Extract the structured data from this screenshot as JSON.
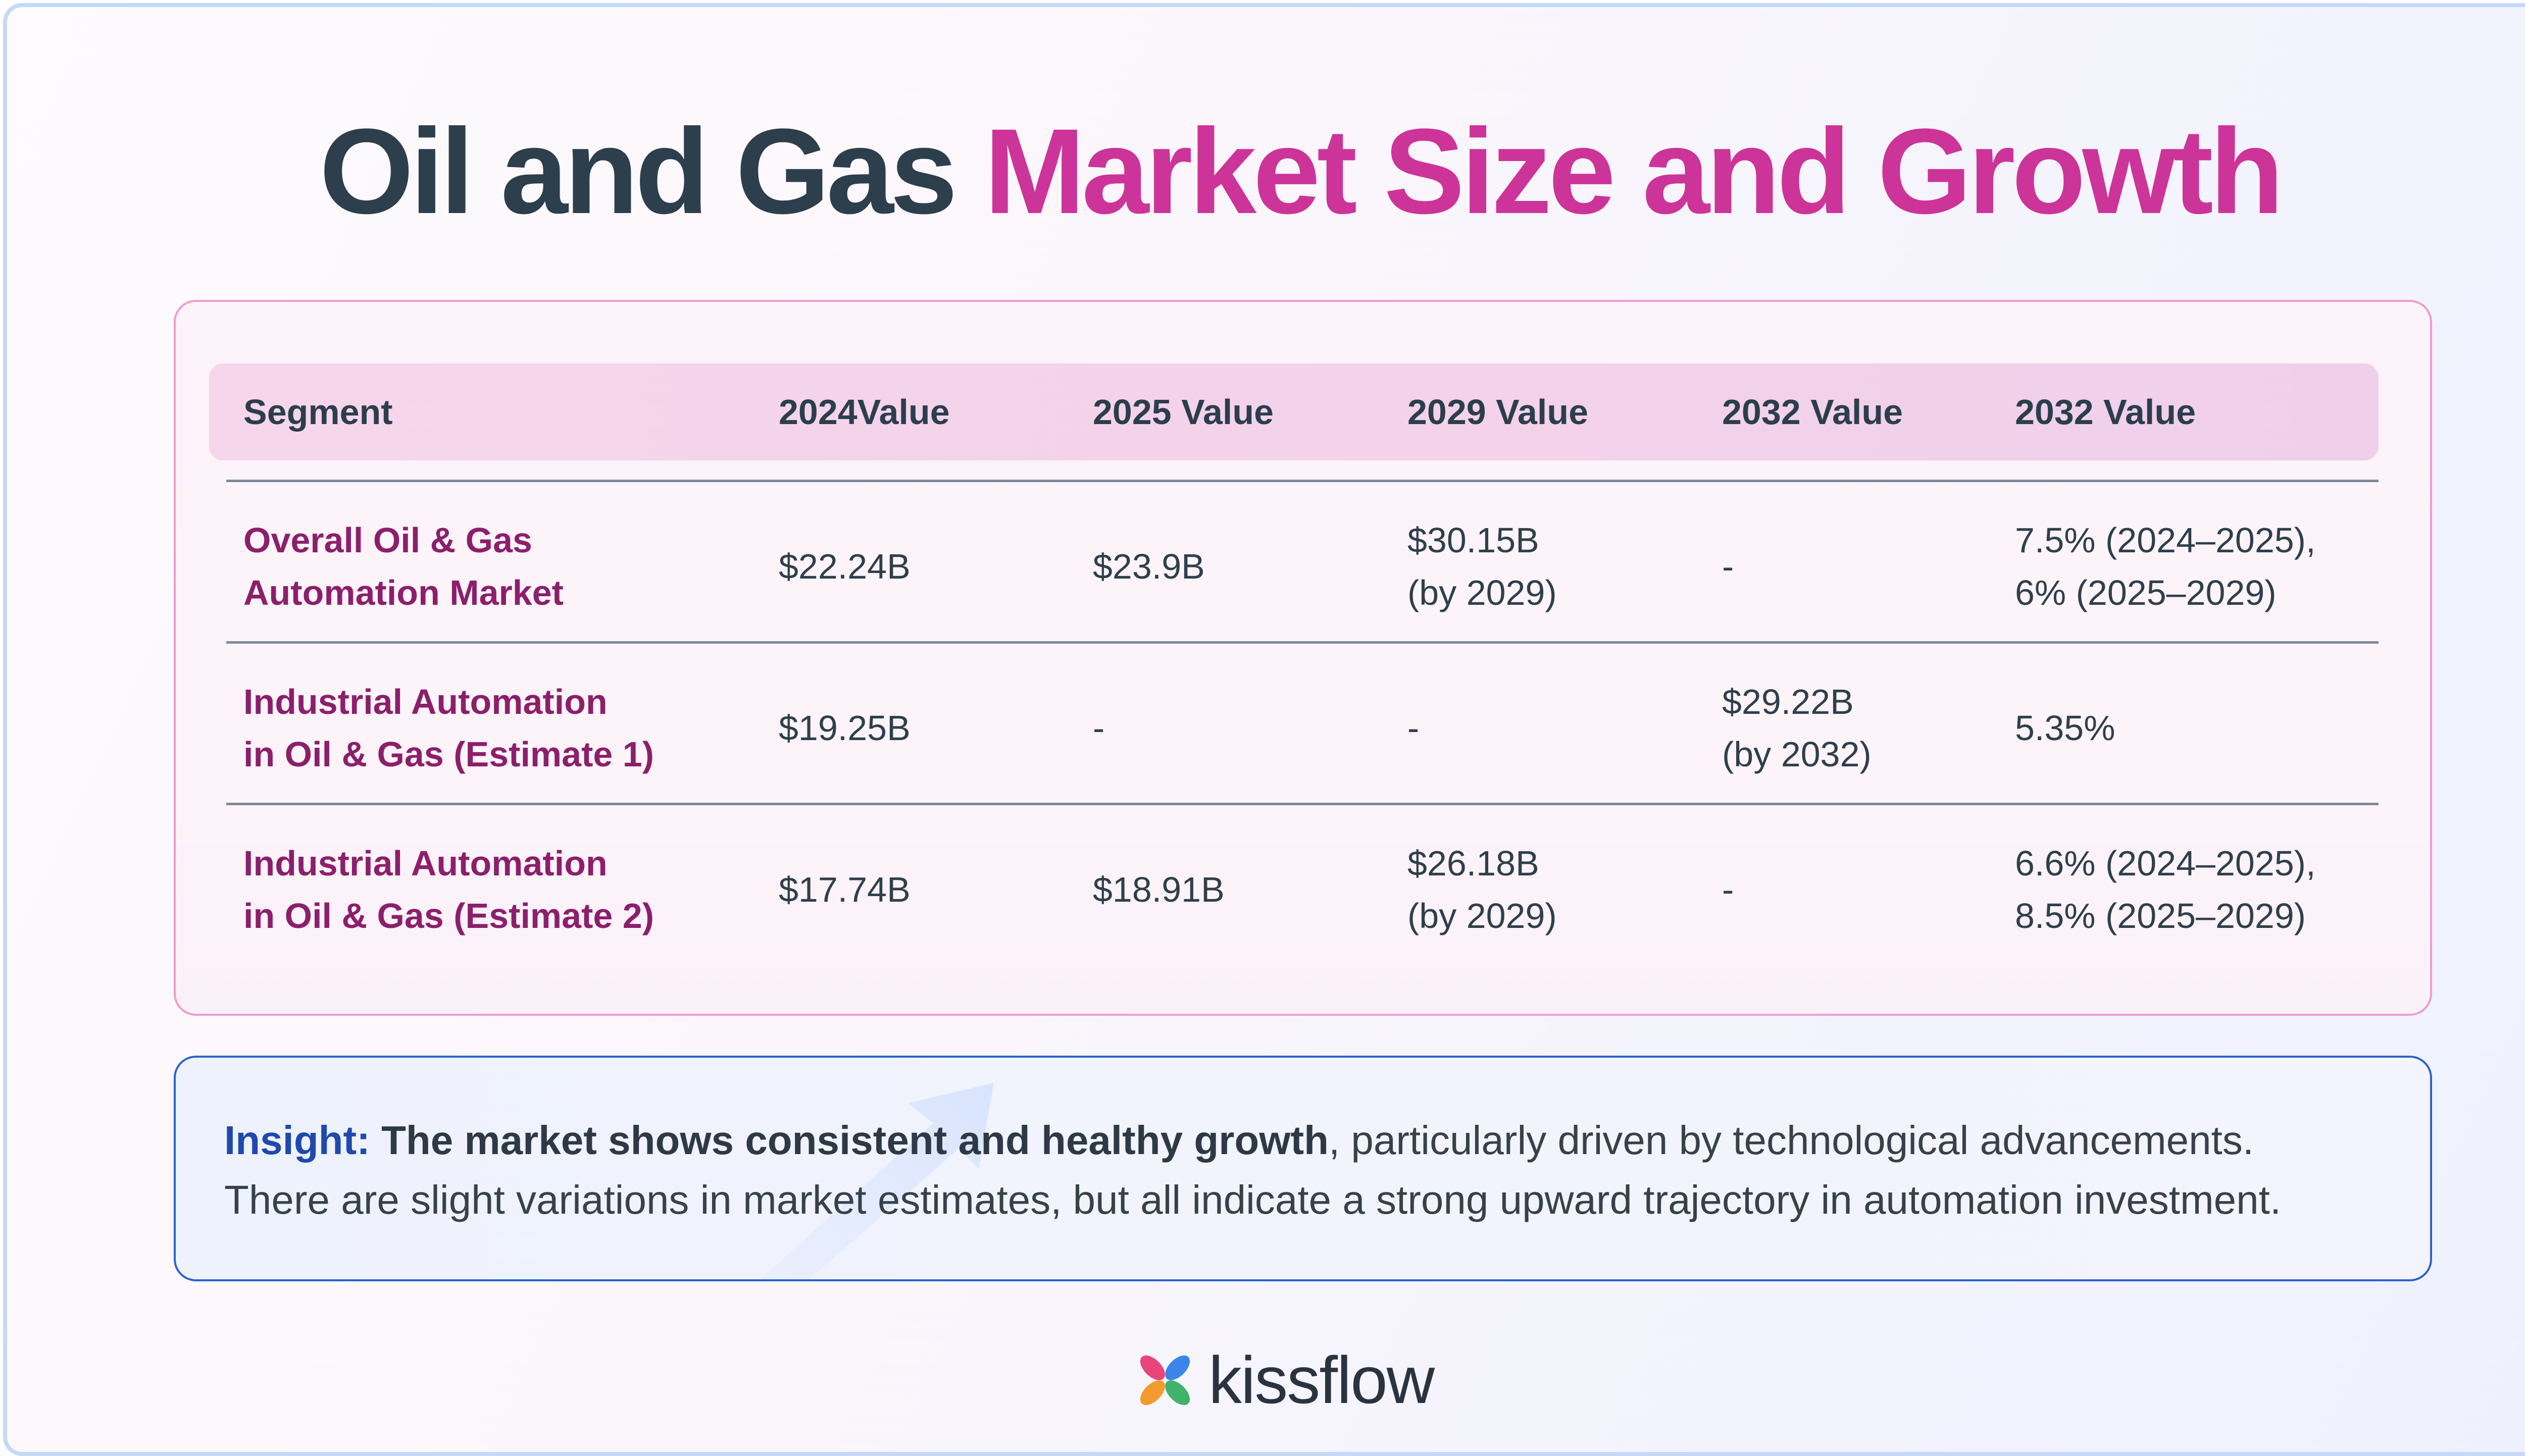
{
  "title": {
    "part1": "Oil and Gas",
    "part2": "Market Size and Growth"
  },
  "colors": {
    "title_dark": "#2d3e4c",
    "title_accent": "#cc3499",
    "segment_text": "#8c1f6c",
    "insight_label": "#1f49ae",
    "table_border": "#ee9ccd",
    "insight_border": "#2b63cc"
  },
  "table": {
    "headers": [
      "Segment",
      "2024Value",
      "2025 Value",
      "2029 Value",
      "2032 Value",
      "2032 Value"
    ],
    "rows": [
      {
        "segment": "Overall Oil & Gas\nAutomation Market",
        "v2024": "$22.24B",
        "v2025": "$23.9B",
        "v2029": "$30.15B\n(by 2029)",
        "v2032": "-",
        "cagr": "7.5% (2024–2025),\n6% (2025–2029)"
      },
      {
        "segment": "Industrial Automation\nin Oil & Gas (Estimate 1)",
        "v2024": "$19.25B",
        "v2025": "-",
        "v2029": "-",
        "v2032": "$29.22B\n(by 2032)",
        "cagr": "5.35%"
      },
      {
        "segment": "Industrial Automation\nin Oil & Gas (Estimate 2)",
        "v2024": "$17.74B",
        "v2025": "$18.91B",
        "v2029": "$26.18B\n(by 2029)",
        "v2032": "-",
        "cagr": "6.6% (2024–2025),\n8.5% (2025–2029)"
      }
    ]
  },
  "insight": {
    "label": "Insight:",
    "strong": "The market shows consistent and healthy growth",
    "rest_line1": ", particularly driven by technological advancements.",
    "line2": "There are slight variations in market estimates, but all indicate a strong upward trajectory in automation investment."
  },
  "logo": {
    "wordmark": "kissflow",
    "icon": "kissflow-butterfly-icon"
  }
}
